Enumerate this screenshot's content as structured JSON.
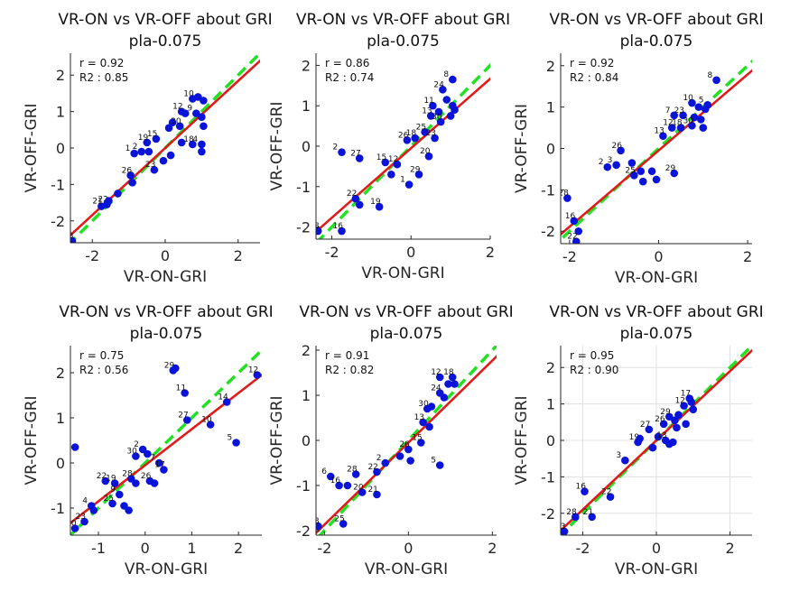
{
  "chart_data": [
    {
      "type": "scatter",
      "title": "VR-ON vs VR-OFF about GRI",
      "subtitle": "pla-0.075",
      "xlabel": "VR-ON-GRI",
      "ylabel": "VR-OFF-GRI",
      "r_text": "r = 0.92",
      "r2_text": "R2 : 0.85",
      "xlim": [
        -2.6,
        2.6
      ],
      "ylim": [
        -2.6,
        2.6
      ],
      "xticks": [
        -2,
        0,
        2
      ],
      "yticks": [
        -2,
        -1,
        0,
        1,
        2
      ],
      "grid": false,
      "fit": {
        "slope": 0.92,
        "intercept": 0.0
      },
      "points": [
        {
          "label": "28",
          "x": -2.55,
          "y": -2.55
        },
        {
          "label": "21",
          "x": -1.75,
          "y": -1.6
        },
        {
          "label": "22",
          "x": -1.6,
          "y": -1.55
        },
        {
          "label": "",
          "x": -1.55,
          "y": -1.45
        },
        {
          "label": "",
          "x": -1.3,
          "y": -1.25
        },
        {
          "label": "26",
          "x": -0.95,
          "y": -0.75
        },
        {
          "label": "",
          "x": -0.9,
          "y": -0.95
        },
        {
          "label": "1",
          "x": -0.85,
          "y": -0.15
        },
        {
          "label": "2",
          "x": -0.65,
          "y": -0.1
        },
        {
          "label": "19",
          "x": -0.5,
          "y": 0.15
        },
        {
          "label": "",
          "x": -0.45,
          "y": -0.1
        },
        {
          "label": "15",
          "x": -0.25,
          "y": 0.25
        },
        {
          "label": "23",
          "x": -0.3,
          "y": -0.6
        },
        {
          "label": "",
          "x": -0.05,
          "y": -0.35
        },
        {
          "label": "",
          "x": 0.15,
          "y": -0.2
        },
        {
          "label": "",
          "x": 0.1,
          "y": 0.55
        },
        {
          "label": "",
          "x": 0.2,
          "y": 0.7
        },
        {
          "label": "12",
          "x": 0.45,
          "y": 1.0
        },
        {
          "label": "",
          "x": 0.55,
          "y": 0.95
        },
        {
          "label": "30",
          "x": 0.4,
          "y": 0.6
        },
        {
          "label": "",
          "x": 0.45,
          "y": 0.15
        },
        {
          "label": "18",
          "x": 0.75,
          "y": 0.1
        },
        {
          "label": "4",
          "x": 1.0,
          "y": 0.1
        },
        {
          "label": "10",
          "x": 0.75,
          "y": 1.35
        },
        {
          "label": "",
          "x": 0.9,
          "y": 1.4
        },
        {
          "label": "",
          "x": 1.05,
          "y": 1.3
        },
        {
          "label": "9",
          "x": 0.85,
          "y": 0.95
        },
        {
          "label": "",
          "x": 1.0,
          "y": 0.85
        },
        {
          "label": "",
          "x": 1.05,
          "y": 0.6
        },
        {
          "label": "",
          "x": 1.0,
          "y": -0.1
        }
      ]
    },
    {
      "type": "scatter",
      "title": "VR-ON vs VR-OFF about GRI",
      "subtitle": "pla-0.075",
      "xlabel": "VR-ON-GRI",
      "ylabel": "VR-OFF-GRI",
      "r_text": "r = 0.86",
      "r2_text": "R2 : 0.74",
      "xlim": [
        -2.4,
        2.0
      ],
      "ylim": [
        -2.3,
        2.3
      ],
      "xticks": [
        -2,
        0,
        2
      ],
      "yticks": [
        -2,
        -1,
        0,
        1,
        2
      ],
      "grid": false,
      "fit": {
        "slope": 0.86,
        "intercept": -0.05
      },
      "points": [
        {
          "label": "28",
          "x": -2.35,
          "y": -2.1
        },
        {
          "label": "16",
          "x": -1.75,
          "y": -2.1
        },
        {
          "label": "2",
          "x": -1.75,
          "y": -0.15
        },
        {
          "label": "27",
          "x": -1.3,
          "y": -0.3
        },
        {
          "label": "22",
          "x": -1.4,
          "y": -1.3
        },
        {
          "label": "",
          "x": -1.3,
          "y": -1.45
        },
        {
          "label": "19",
          "x": -0.8,
          "y": -1.5
        },
        {
          "label": "15",
          "x": -0.65,
          "y": -0.4
        },
        {
          "label": "12",
          "x": -0.35,
          "y": -0.45
        },
        {
          "label": "",
          "x": -0.5,
          "y": -0.7
        },
        {
          "label": "1",
          "x": -0.05,
          "y": -0.95
        },
        {
          "label": "29",
          "x": 0.2,
          "y": -0.7
        },
        {
          "label": "26",
          "x": -0.1,
          "y": 0.15
        },
        {
          "label": "18",
          "x": 0.1,
          "y": 0.2
        },
        {
          "label": "25",
          "x": 0.35,
          "y": 0.35
        },
        {
          "label": "20",
          "x": 0.45,
          "y": -0.25
        },
        {
          "label": "23",
          "x": 0.6,
          "y": 0.2
        },
        {
          "label": "13",
          "x": 0.5,
          "y": 0.75
        },
        {
          "label": "11",
          "x": 0.55,
          "y": 1.0
        },
        {
          "label": "",
          "x": 0.7,
          "y": 0.85
        },
        {
          "label": "30",
          "x": 0.75,
          "y": 0.6
        },
        {
          "label": "24",
          "x": 0.8,
          "y": 1.4
        },
        {
          "label": "8",
          "x": 1.05,
          "y": 1.65
        },
        {
          "label": "",
          "x": 0.9,
          "y": 1.15
        },
        {
          "label": "",
          "x": 1.05,
          "y": 1.0
        },
        {
          "label": "",
          "x": 1.0,
          "y": 0.75
        },
        {
          "label": "",
          "x": 1.1,
          "y": 0.9
        }
      ]
    },
    {
      "type": "scatter",
      "title": "VR-ON vs VR-OFF about GRI",
      "subtitle": "pla-0.075",
      "xlabel": "VR-ON-GRI",
      "ylabel": "VR-OFF-GRI",
      "r_text": "r = 0.92",
      "r2_text": "R2 : 0.84",
      "xlim": [
        -2.2,
        2.1
      ],
      "ylim": [
        -2.3,
        2.3
      ],
      "xticks": [
        -2,
        0,
        2
      ],
      "yticks": [
        -2,
        -1,
        0,
        1,
        2
      ],
      "grid": false,
      "fit": {
        "slope": 0.92,
        "intercept": -0.05
      },
      "points": [
        {
          "label": "28",
          "x": -2.05,
          "y": -1.2
        },
        {
          "label": "16",
          "x": -1.9,
          "y": -1.75
        },
        {
          "label": "",
          "x": -1.8,
          "y": -2.0
        },
        {
          "label": "22",
          "x": -1.85,
          "y": -2.25
        },
        {
          "label": "2",
          "x": -1.15,
          "y": -0.45
        },
        {
          "label": "3",
          "x": -0.95,
          "y": -0.4
        },
        {
          "label": "26",
          "x": -0.85,
          "y": -0.05
        },
        {
          "label": "",
          "x": -0.6,
          "y": -0.35
        },
        {
          "label": "25",
          "x": -0.55,
          "y": -0.65
        },
        {
          "label": "",
          "x": -0.4,
          "y": -0.55
        },
        {
          "label": "",
          "x": -0.35,
          "y": -0.8
        },
        {
          "label": "",
          "x": -0.15,
          "y": -0.55
        },
        {
          "label": "",
          "x": -0.05,
          "y": -0.75
        },
        {
          "label": "29",
          "x": 0.35,
          "y": -0.6
        },
        {
          "label": "13",
          "x": 0.1,
          "y": 0.3
        },
        {
          "label": "12",
          "x": 0.3,
          "y": 0.5
        },
        {
          "label": "7",
          "x": 0.35,
          "y": 0.8
        },
        {
          "label": "18",
          "x": 0.5,
          "y": 0.5
        },
        {
          "label": "23",
          "x": 0.55,
          "y": 0.8
        },
        {
          "label": "10",
          "x": 0.75,
          "y": 1.1
        },
        {
          "label": "",
          "x": 0.8,
          "y": 0.75
        },
        {
          "label": "30",
          "x": 0.75,
          "y": 0.55
        },
        {
          "label": "",
          "x": 0.9,
          "y": 1.0
        },
        {
          "label": "",
          "x": 0.95,
          "y": 0.7
        },
        {
          "label": "",
          "x": 1.0,
          "y": 0.5
        },
        {
          "label": "",
          "x": 1.05,
          "y": 0.95
        },
        {
          "label": "5",
          "x": 1.1,
          "y": 1.05
        },
        {
          "label": "8",
          "x": 1.3,
          "y": 1.65
        }
      ]
    },
    {
      "type": "scatter",
      "title": "VR-ON vs VR-OFF about GRI",
      "subtitle": "pla-0.075",
      "xlabel": "VR-ON-GRI",
      "ylabel": "VR-OFF-GRI",
      "r_text": "r = 0.75",
      "r2_text": "R2 : 0.56",
      "xlim": [
        -1.6,
        2.5
      ],
      "ylim": [
        -1.6,
        2.6
      ],
      "xticks": [
        -1,
        0,
        1,
        2
      ],
      "yticks": [
        -1,
        0,
        1,
        2
      ],
      "grid": false,
      "fit": {
        "slope": 0.8,
        "intercept": -0.05
      },
      "points": [
        {
          "label": "20",
          "x": -1.5,
          "y": -1.45
        },
        {
          "label": "23",
          "x": -1.3,
          "y": -1.3
        },
        {
          "label": "4",
          "x": -1.15,
          "y": -0.95
        },
        {
          "label": "",
          "x": -1.1,
          "y": -1.05
        },
        {
          "label": "6",
          "x": -1.5,
          "y": 0.35
        },
        {
          "label": "22",
          "x": -0.85,
          "y": -0.4
        },
        {
          "label": "19",
          "x": -0.65,
          "y": -0.45
        },
        {
          "label": "9",
          "x": -0.55,
          "y": -0.7
        },
        {
          "label": "25",
          "x": -0.7,
          "y": -0.9
        },
        {
          "label": "",
          "x": -0.45,
          "y": -0.95
        },
        {
          "label": "",
          "x": -0.35,
          "y": -1.05
        },
        {
          "label": "28",
          "x": -0.3,
          "y": -0.35
        },
        {
          "label": "",
          "x": -0.2,
          "y": -0.45
        },
        {
          "label": "30",
          "x": -0.2,
          "y": 0.15
        },
        {
          "label": "2",
          "x": -0.05,
          "y": 0.3
        },
        {
          "label": "",
          "x": 0.05,
          "y": 0.2
        },
        {
          "label": "26",
          "x": 0.1,
          "y": -0.4
        },
        {
          "label": "",
          "x": 0.2,
          "y": -0.45
        },
        {
          "label": "7",
          "x": 0.3,
          "y": 0.0
        },
        {
          "label": "17",
          "x": 0.4,
          "y": -0.15
        },
        {
          "label": "27",
          "x": 0.9,
          "y": 0.95
        },
        {
          "label": "10",
          "x": 1.4,
          "y": 0.85
        },
        {
          "label": "11",
          "x": 0.85,
          "y": 1.55
        },
        {
          "label": "29",
          "x": 0.6,
          "y": 2.05
        },
        {
          "label": "",
          "x": 0.65,
          "y": 2.1
        },
        {
          "label": "14",
          "x": 1.75,
          "y": 1.35
        },
        {
          "label": "5",
          "x": 1.95,
          "y": 0.45
        },
        {
          "label": "12",
          "x": 2.4,
          "y": 1.95
        }
      ]
    },
    {
      "type": "scatter",
      "title": "VR-ON vs VR-OFF about GRI",
      "subtitle": "pla-0.075",
      "xlabel": "VR-ON-GRI",
      "ylabel": "VR-OFF-GRI",
      "r_text": "r = 0.91",
      "r2_text": "R2 : 0.82",
      "xlim": [
        -2.2,
        2.1
      ],
      "ylim": [
        -2.1,
        2.1
      ],
      "xticks": [
        -2,
        0,
        2
      ],
      "yticks": [
        -2,
        -1,
        0,
        1,
        2
      ],
      "grid": false,
      "fit": {
        "slope": 0.91,
        "intercept": -0.05
      },
      "points": [
        {
          "label": "23",
          "x": -2.15,
          "y": -1.9
        },
        {
          "label": "25",
          "x": -1.55,
          "y": -1.85
        },
        {
          "label": "6",
          "x": -1.85,
          "y": -0.8
        },
        {
          "label": "16",
          "x": -1.65,
          "y": -1.0
        },
        {
          "label": "",
          "x": -1.45,
          "y": -1.0
        },
        {
          "label": "28",
          "x": -1.25,
          "y": -0.75
        },
        {
          "label": "20",
          "x": -1.1,
          "y": -1.15
        },
        {
          "label": "21",
          "x": -0.75,
          "y": -1.2
        },
        {
          "label": "22",
          "x": -0.75,
          "y": -0.7
        },
        {
          "label": "2",
          "x": -0.55,
          "y": -0.5
        },
        {
          "label": "",
          "x": -0.2,
          "y": -0.35
        },
        {
          "label": "26",
          "x": 0.0,
          "y": -0.2
        },
        {
          "label": "",
          "x": 0.05,
          "y": -0.45
        },
        {
          "label": "15",
          "x": 0.3,
          "y": -0.05
        },
        {
          "label": "13",
          "x": 0.35,
          "y": 0.4
        },
        {
          "label": "30",
          "x": 0.45,
          "y": 0.7
        },
        {
          "label": "",
          "x": 0.5,
          "y": 0.3
        },
        {
          "label": "",
          "x": 0.55,
          "y": 0.75
        },
        {
          "label": "5",
          "x": 0.75,
          "y": -0.55
        },
        {
          "label": "24",
          "x": 0.75,
          "y": 1.05
        },
        {
          "label": "",
          "x": 0.85,
          "y": 0.95
        },
        {
          "label": "12",
          "x": 0.75,
          "y": 1.4
        },
        {
          "label": "",
          "x": 0.95,
          "y": 1.25
        },
        {
          "label": "18",
          "x": 1.05,
          "y": 1.4
        },
        {
          "label": "",
          "x": 1.1,
          "y": 1.25
        }
      ]
    },
    {
      "type": "scatter",
      "title": "VR-ON vs VR-OFF about GRI",
      "subtitle": "pla-0.075",
      "xlabel": "VR-ON-GRI",
      "ylabel": "VR-OFF-GRI",
      "r_text": "r = 0.95",
      "r2_text": "R2 : 0.90",
      "xlim": [
        -2.6,
        2.6
      ],
      "ylim": [
        -2.6,
        2.6
      ],
      "xticks": [
        -2,
        0,
        2
      ],
      "yticks": [
        -2,
        -1,
        0,
        1,
        2
      ],
      "grid": true,
      "fit": {
        "slope": 0.95,
        "intercept": 0.0
      },
      "points": [
        {
          "label": "23",
          "x": -2.5,
          "y": -2.5
        },
        {
          "label": "28",
          "x": -2.2,
          "y": -2.1
        },
        {
          "label": "21",
          "x": -1.75,
          "y": -2.1
        },
        {
          "label": "16",
          "x": -1.95,
          "y": -1.4
        },
        {
          "label": "22",
          "x": -1.25,
          "y": -1.55
        },
        {
          "label": "3",
          "x": -0.85,
          "y": -0.55
        },
        {
          "label": "19",
          "x": -0.5,
          "y": -0.05
        },
        {
          "label": "",
          "x": -0.45,
          "y": 0.05
        },
        {
          "label": "27",
          "x": -0.2,
          "y": 0.3
        },
        {
          "label": "",
          "x": -0.1,
          "y": -0.2
        },
        {
          "label": "",
          "x": 0.05,
          "y": 0.1
        },
        {
          "label": "13",
          "x": 0.25,
          "y": 0.0
        },
        {
          "label": "",
          "x": 0.35,
          "y": -0.1
        },
        {
          "label": "",
          "x": 0.45,
          "y": -0.05
        },
        {
          "label": "26",
          "x": 0.2,
          "y": 0.45
        },
        {
          "label": "29",
          "x": 0.35,
          "y": 0.65
        },
        {
          "label": "",
          "x": 0.5,
          "y": 0.55
        },
        {
          "label": "",
          "x": 0.55,
          "y": 0.35
        },
        {
          "label": "",
          "x": 0.6,
          "y": 0.7
        },
        {
          "label": "12",
          "x": 0.75,
          "y": 0.95
        },
        {
          "label": "17",
          "x": 0.9,
          "y": 1.15
        },
        {
          "label": "",
          "x": 0.95,
          "y": 1.05
        },
        {
          "label": "",
          "x": 0.8,
          "y": 0.45
        },
        {
          "label": "",
          "x": 1.0,
          "y": 0.85
        }
      ]
    }
  ],
  "colors": {
    "points": "#0a14d9",
    "fit_line": "#e01b1b",
    "identity_line": "#22e022",
    "axes": "#262626"
  }
}
